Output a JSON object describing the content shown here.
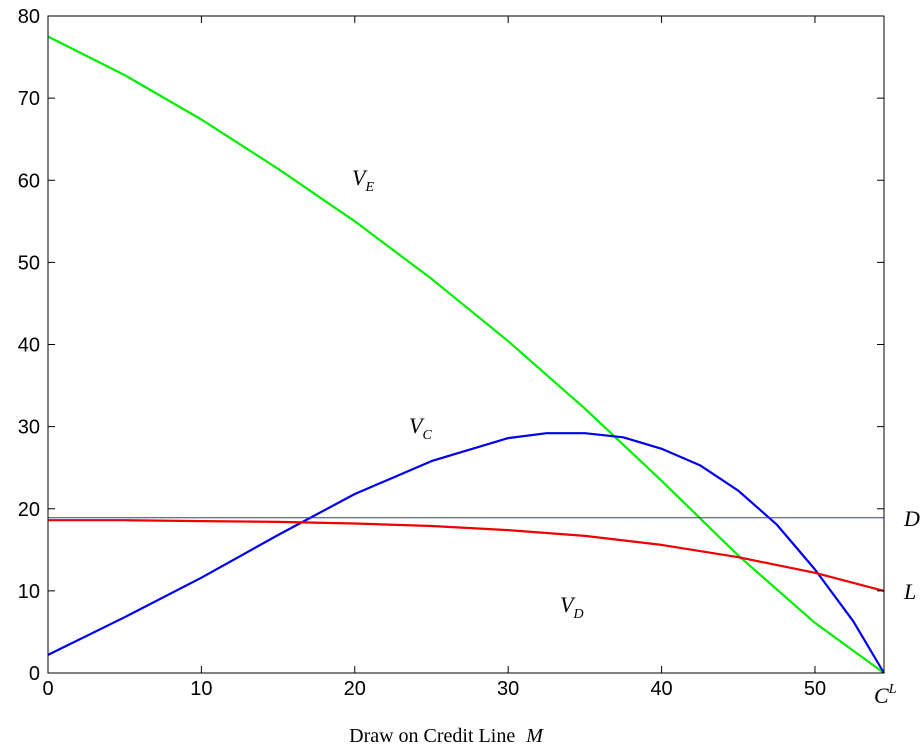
{
  "chart_data": {
    "type": "line",
    "xlabel": "Draw on Credit Line",
    "xlabel_var": "M",
    "ylabel": "",
    "xlim": [
      0,
      54.5
    ],
    "ylim": [
      0,
      80
    ],
    "xticks": [
      0,
      10,
      20,
      30,
      40,
      50
    ],
    "yticks": [
      0,
      10,
      20,
      30,
      40,
      50,
      60,
      70,
      80
    ],
    "grid": false,
    "x_end_label": {
      "main": "C",
      "sup": "L"
    },
    "series": [
      {
        "name": "V_E",
        "label_main": "V",
        "label_sub": "E",
        "color": "#00ee00",
        "x": [
          0,
          5,
          10,
          15,
          20,
          25,
          30,
          35,
          40,
          45,
          50,
          54.5
        ],
        "y": [
          77.5,
          72.8,
          67.4,
          61.4,
          55,
          48,
          40.4,
          32.2,
          23.4,
          14.3,
          6.1,
          0
        ]
      },
      {
        "name": "V_C",
        "label_main": "V",
        "label_sub": "C",
        "color": "#0000ee",
        "x": [
          0,
          5,
          10,
          15,
          20,
          25,
          30,
          32.5,
          35,
          37.5,
          40,
          42.5,
          45,
          47.5,
          50,
          52.5,
          54.5
        ],
        "y": [
          2.2,
          6.8,
          11.6,
          16.8,
          21.8,
          25.8,
          28.6,
          29.2,
          29.2,
          28.7,
          27.3,
          25.3,
          22.2,
          18.1,
          12.6,
          6.3,
          0
        ]
      },
      {
        "name": "V_D",
        "label_main": "V",
        "label_sub": "D",
        "color": "#ee0000",
        "x": [
          0,
          5,
          10,
          15,
          20,
          25,
          30,
          35,
          40,
          45,
          50,
          54.5
        ],
        "y": [
          18.6,
          18.6,
          18.5,
          18.4,
          18.2,
          17.9,
          17.4,
          16.7,
          15.6,
          14.1,
          12.2,
          10
        ]
      },
      {
        "name": "D",
        "label_main": "D",
        "color": "#3333cc",
        "x": [
          0,
          54.5
        ],
        "y": [
          18.9,
          18.9
        ]
      }
    ],
    "end_labels": [
      {
        "text": "D",
        "y": 18.9
      },
      {
        "text": "L",
        "y": 10
      }
    ]
  }
}
